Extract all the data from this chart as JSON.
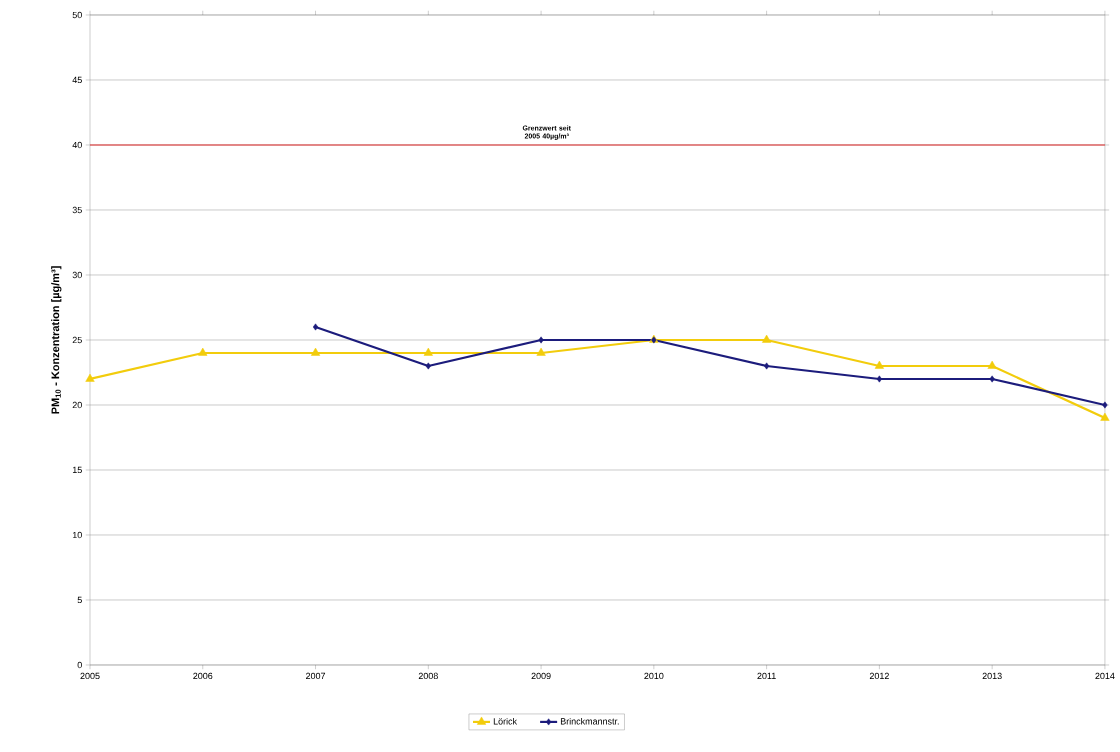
{
  "chart_data": {
    "type": "line",
    "ylabel": "PM$_{10}$ - Konzentration [µg/m³]",
    "x": [
      2005,
      2006,
      2007,
      2008,
      2009,
      2010,
      2011,
      2012,
      2013,
      2014
    ],
    "xlim": [
      2005,
      2014
    ],
    "xticks": [
      2005,
      2006,
      2007,
      2008,
      2009,
      2010,
      2011,
      2012,
      2013,
      2014
    ],
    "ylim": [
      0,
      50
    ],
    "yticks": [
      0,
      5,
      10,
      15,
      20,
      25,
      30,
      35,
      40,
      45,
      50
    ],
    "series": [
      {
        "name": "Lörick",
        "color": "#f2cc0c",
        "marker": "triangle",
        "values": [
          22,
          24,
          24,
          24,
          24,
          25,
          25,
          23,
          23,
          19
        ]
      },
      {
        "name": "Brinckmannstr.",
        "color": "#1c1c7c",
        "marker": "diamond",
        "values": [
          null,
          null,
          26,
          23,
          25,
          25,
          23,
          22,
          22,
          20
        ]
      }
    ],
    "ref_lines": [
      {
        "axis": "y",
        "value": 40,
        "label": "Grenzwert seit 2005 40µg/m³",
        "color": "#e02828"
      }
    ],
    "grid": "y",
    "legend": "bottom",
    "line_style": "solid"
  }
}
